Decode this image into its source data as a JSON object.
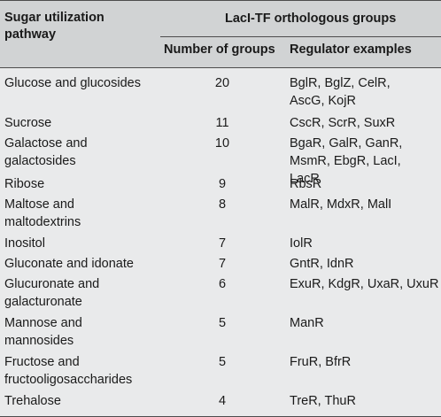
{
  "header": {
    "pathway_label": "Sugar utilization pathway",
    "group_label": "LacI-TF orthologous groups",
    "num_label": "Number of groups",
    "reg_label": "Regulator examples"
  },
  "rows": [
    {
      "pathway": "Glucose and glucosides",
      "number": "20",
      "regulators": "BglR, BglZ, CelR, AscG, KojR"
    },
    {
      "pathway": "Sucrose",
      "number": "11",
      "regulators": "CscR, ScrR, SuxR"
    },
    {
      "pathway": "Galactose and galactosides",
      "number": "10",
      "regulators": "BgaR, GalR, GanR, MsmR, EbgR, LacI, LacR"
    },
    {
      "pathway": "Ribose",
      "number": "9",
      "regulators": "RbsR"
    },
    {
      "pathway": "Maltose and maltodextrins",
      "number": "8",
      "regulators": "MalR, MdxR, MalI"
    },
    {
      "pathway": "Inositol",
      "number": "7",
      "regulators": "IolR"
    },
    {
      "pathway": "Gluconate and idonate",
      "number": "7",
      "regulators": "GntR, IdnR"
    },
    {
      "pathway": "Glucuronate and galacturonate",
      "number": "6",
      "regulators": "ExuR, KdgR, UxaR, UxuR"
    },
    {
      "pathway": "Mannose and mannosides",
      "number": "5",
      "regulators": "ManR"
    },
    {
      "pathway": "Fructose and fructooligosaccharides",
      "number": "5",
      "regulators": "FruR, BfrR"
    },
    {
      "pathway": "Trehalose",
      "number": "4",
      "regulators": "TreR, ThuR"
    }
  ]
}
